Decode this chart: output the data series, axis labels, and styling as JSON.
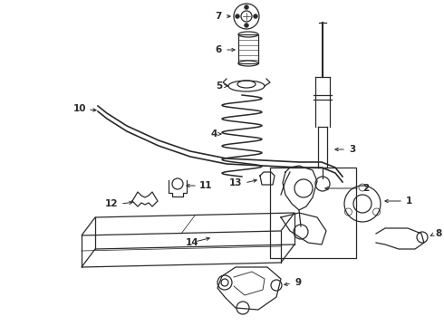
{
  "bg_color": "#ffffff",
  "line_color": "#2a2a2a",
  "label_color": "#000000",
  "lw": 0.9,
  "figsize": [
    4.9,
    3.6
  ],
  "dpi": 100
}
